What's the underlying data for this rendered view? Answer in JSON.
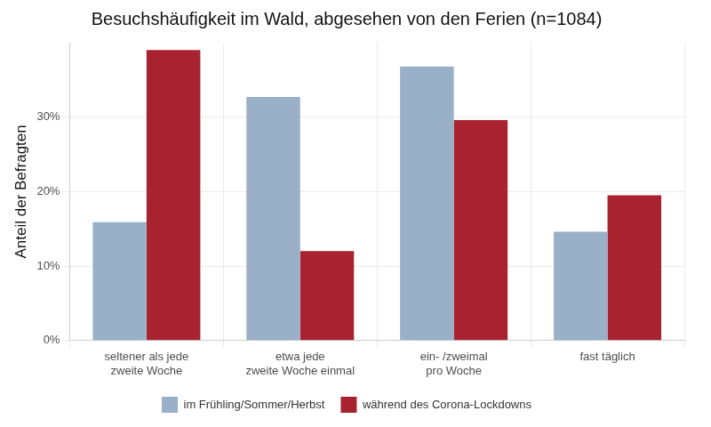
{
  "chart_data": {
    "type": "bar",
    "title": "Besuchshäufigkeit im Wald, abgesehen von den Ferien (n=1084)",
    "y_label": "Anteil der Befragten",
    "categories": [
      [
        "seltener als jede",
        "zweite Woche"
      ],
      [
        "etwa jede",
        "zweite Woche einmal"
      ],
      [
        "ein- /zweimal",
        "pro Woche"
      ],
      "fast täglich"
    ],
    "series": [
      {
        "name": "im Frühling/Sommer/Herbst",
        "color": "#9ab0c8",
        "values": [
          15.9,
          32.7,
          36.8,
          14.6
        ]
      },
      {
        "name": "während des Corona-Lockdowns",
        "color": "#a8222f",
        "values": [
          39.0,
          12.0,
          29.6,
          19.5
        ]
      }
    ],
    "ylim": [
      0,
      40
    ],
    "yticks": [
      {
        "value": 0,
        "label": "0%"
      },
      {
        "value": 10,
        "label": "10%"
      },
      {
        "value": 20,
        "label": "20%"
      },
      {
        "value": 30,
        "label": "30%"
      }
    ],
    "grid": true,
    "legend": "bottom"
  }
}
